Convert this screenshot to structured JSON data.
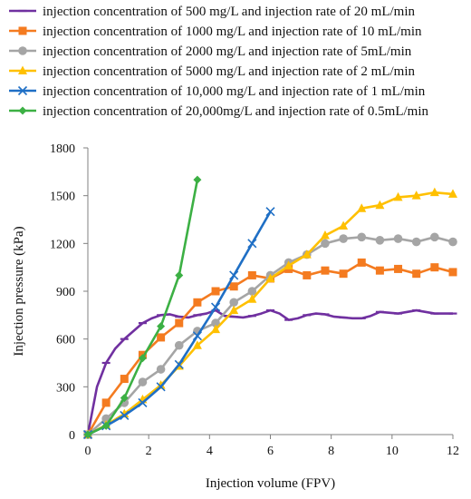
{
  "chart_data": {
    "type": "line",
    "xlabel": "Injection volume (FPV)",
    "ylabel": "Injection pressure (kPa)",
    "xlim": [
      0,
      12
    ],
    "ylim": [
      0,
      1800
    ],
    "xticks": [
      "0",
      "2",
      "4",
      "6",
      "8",
      "10",
      "12"
    ],
    "yticks": [
      "0",
      "300",
      "600",
      "900",
      "1200",
      "1500",
      "1800"
    ],
    "grid": false,
    "legend_position": "top",
    "series": [
      {
        "name": "injection concentration of 500 mg/L and injection rate of 20 mL/min",
        "color": "#7030A0",
        "marker": "dash",
        "x": [
          0,
          0.3,
          0.6,
          0.9,
          1.2,
          1.5,
          1.8,
          2.1,
          2.4,
          2.7,
          3.0,
          3.3,
          3.6,
          3.9,
          4.2,
          4.5,
          4.8,
          5.1,
          5.4,
          5.7,
          6.0,
          6.3,
          6.6,
          6.9,
          7.2,
          7.5,
          7.8,
          8.1,
          8.4,
          8.7,
          9.0,
          9.3,
          9.6,
          9.9,
          10.2,
          10.5,
          10.8,
          11.1,
          11.4,
          11.7,
          12.0
        ],
        "y": [
          0,
          300,
          450,
          540,
          600,
          650,
          700,
          730,
          750,
          755,
          740,
          735,
          750,
          760,
          780,
          745,
          740,
          735,
          745,
          760,
          780,
          760,
          720,
          730,
          750,
          760,
          755,
          740,
          735,
          730,
          730,
          745,
          770,
          765,
          760,
          770,
          780,
          770,
          760,
          760,
          760
        ]
      },
      {
        "name": "injection concentration of 1000 mg/L and injection rate of 10 mL/min",
        "color": "#F47B20",
        "marker": "square",
        "x": [
          0,
          0.6,
          1.2,
          1.8,
          2.4,
          3.0,
          3.6,
          4.2,
          4.8,
          5.4,
          6.0,
          6.6,
          7.2,
          7.8,
          8.4,
          9.0,
          9.6,
          10.2,
          10.8,
          11.4,
          12.0
        ],
        "y": [
          0,
          200,
          350,
          500,
          610,
          700,
          830,
          900,
          930,
          1000,
          980,
          1040,
          1000,
          1030,
          1010,
          1080,
          1030,
          1040,
          1010,
          1050,
          1020
        ]
      },
      {
        "name": "injection concentration of 2000 mg/L and injection rate of 5mL/min",
        "color": "#A5A5A5",
        "marker": "circle",
        "x": [
          0,
          0.6,
          1.2,
          1.8,
          2.4,
          3.0,
          3.6,
          4.2,
          4.8,
          5.4,
          6.0,
          6.6,
          7.2,
          7.8,
          8.4,
          9.0,
          9.6,
          10.2,
          10.8,
          11.4,
          12.0
        ],
        "y": [
          0,
          100,
          200,
          330,
          410,
          560,
          650,
          700,
          830,
          900,
          1000,
          1080,
          1130,
          1200,
          1230,
          1240,
          1220,
          1230,
          1210,
          1240,
          1210
        ]
      },
      {
        "name": "injection concentration of 5000 mg/L and injection rate of 2 mL/min",
        "color": "#FFC000",
        "marker": "triangle",
        "x": [
          0,
          0.6,
          1.2,
          1.8,
          2.4,
          3.0,
          3.6,
          4.2,
          4.8,
          5.4,
          6.0,
          6.6,
          7.2,
          7.8,
          8.4,
          9.0,
          9.6,
          10.2,
          10.8,
          11.4,
          12.0
        ],
        "y": [
          0,
          60,
          130,
          220,
          310,
          430,
          560,
          660,
          780,
          850,
          980,
          1060,
          1130,
          1250,
          1310,
          1420,
          1440,
          1490,
          1500,
          1520,
          1510
        ]
      },
      {
        "name": "injection concentration of 10,000 mg/L and injection rate of 1 mL/min",
        "color": "#1F6FC5",
        "marker": "x",
        "x": [
          0,
          0.6,
          1.2,
          1.8,
          2.4,
          3.0,
          3.6,
          4.2,
          4.8,
          5.4,
          6.0
        ],
        "y": [
          0,
          55,
          120,
          200,
          300,
          440,
          620,
          800,
          1000,
          1200,
          1400
        ]
      },
      {
        "name": "injection concentration of 20,000mg/L and injection rate of 0.5mL/min",
        "color": "#3CB044",
        "marker": "diamond",
        "x": [
          0,
          0.6,
          1.2,
          1.8,
          2.4,
          3.0,
          3.6
        ],
        "y": [
          0,
          55,
          230,
          480,
          680,
          1000,
          1600
        ]
      }
    ]
  }
}
